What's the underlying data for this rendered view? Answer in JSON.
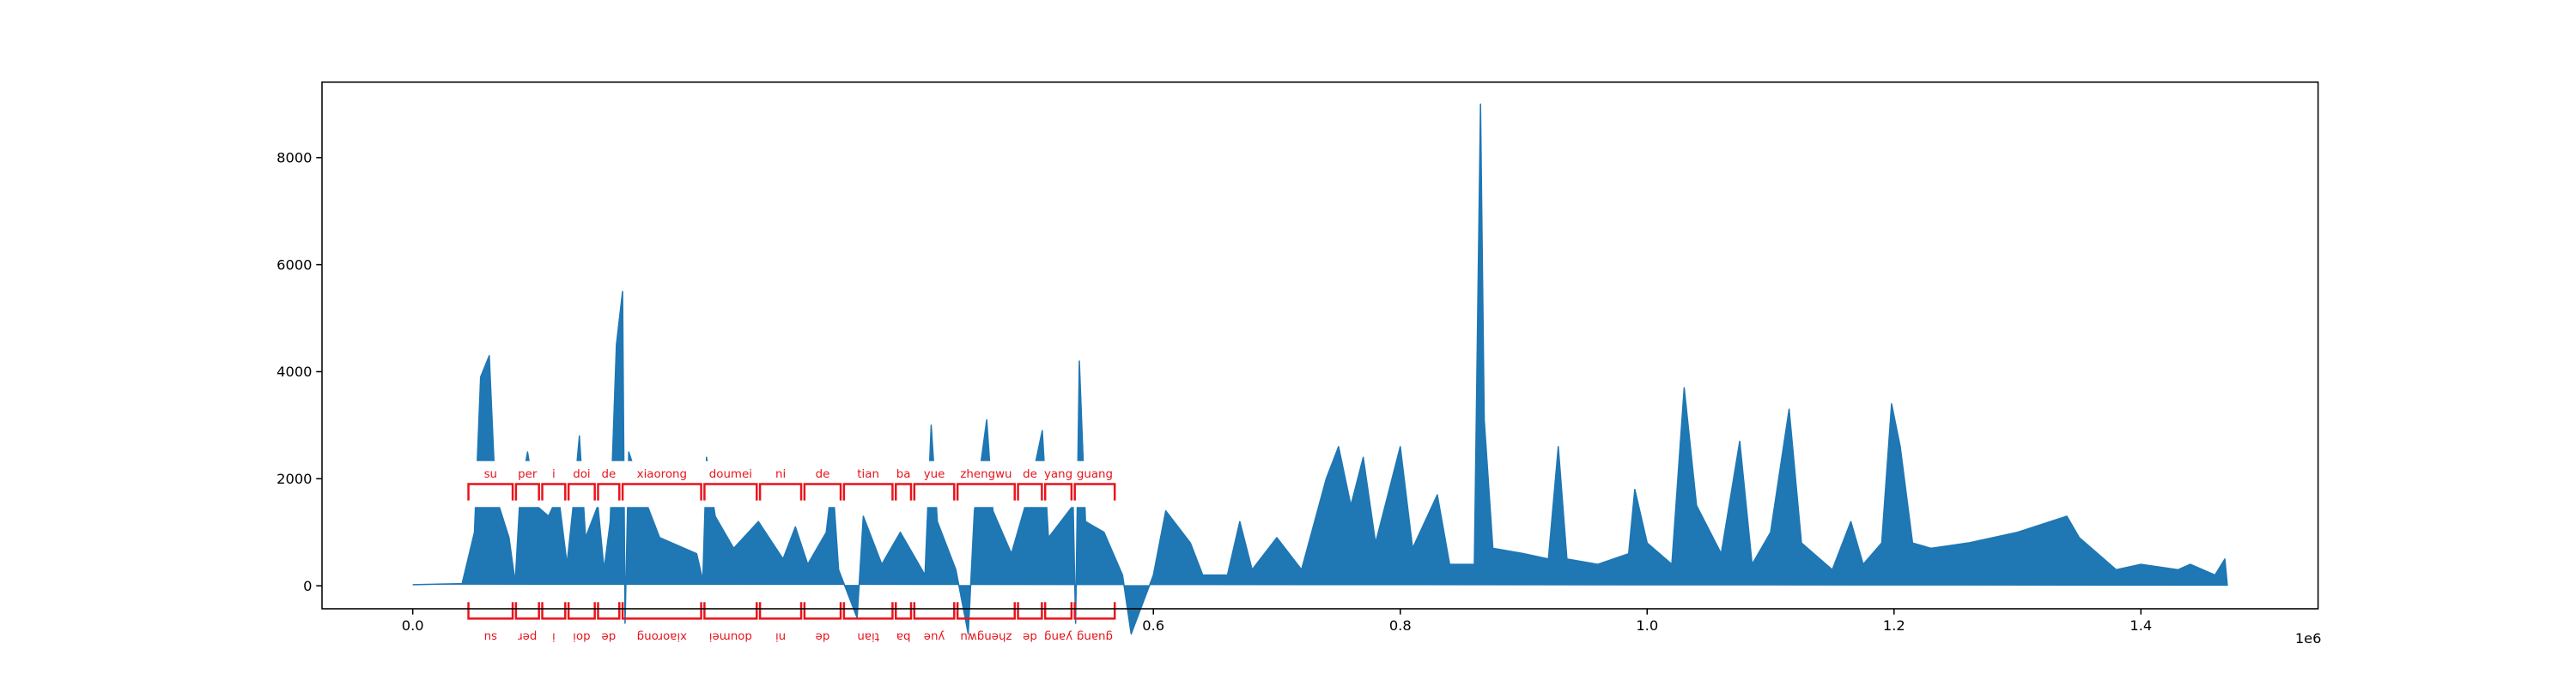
{
  "chart_data": {
    "type": "area",
    "color": "#1f77b4",
    "annotation_color": "#e8141c",
    "x": [
      0,
      40000,
      50000,
      55000,
      62000,
      67000,
      78000,
      83000,
      87000,
      93000,
      100000,
      110000,
      118000,
      125000,
      130000,
      135000,
      140000,
      150000,
      155000,
      160000,
      165000,
      170000,
      172000,
      175000,
      185000,
      200000,
      230000,
      235000,
      238000,
      245000,
      260000,
      280000,
      300000,
      310000,
      320000,
      335000,
      340000,
      345000,
      360000,
      365000,
      380000,
      395000,
      415000,
      420000,
      425000,
      440000,
      450000,
      455000,
      465000,
      470000,
      485000,
      500000,
      510000,
      515000,
      535000,
      537000,
      540000,
      545000,
      560000,
      575000,
      582000,
      600000,
      610000,
      630000,
      640000,
      660000,
      670000,
      680000,
      700000,
      720000,
      740000,
      750000,
      760000,
      770000,
      780000,
      800000,
      810000,
      830000,
      840000,
      860000,
      865000,
      868000,
      875000,
      900000,
      920000,
      928000,
      935000,
      960000,
      985000,
      990000,
      1000000,
      1020000,
      1030000,
      1040000,
      1060000,
      1075000,
      1085000,
      1100000,
      1115000,
      1125000,
      1150000,
      1165000,
      1175000,
      1190000,
      1198000,
      1205000,
      1215000,
      1230000,
      1260000,
      1300000,
      1340000,
      1350000,
      1380000,
      1400000,
      1430000,
      1440000,
      1460000,
      1468000,
      1470000
    ],
    "values": [
      20,
      40,
      1000,
      3900,
      4300,
      1700,
      900,
      60,
      1700,
      2500,
      1500,
      1300,
      1700,
      400,
      1500,
      2800,
      900,
      1500,
      300,
      1200,
      4500,
      5500,
      -700,
      2500,
      1800,
      900,
      600,
      100,
      2400,
      1300,
      700,
      1200,
      500,
      1100,
      400,
      1000,
      2000,
      300,
      -600,
      1300,
      400,
      1000,
      200,
      3000,
      1200,
      300,
      -900,
      1400,
      3100,
      1400,
      600,
      1800,
      2900,
      900,
      1500,
      -700,
      4200,
      1200,
      1000,
      200,
      -900,
      200,
      1400,
      800,
      200,
      200,
      1200,
      300,
      900,
      300,
      2000,
      2600,
      1500,
      2400,
      800,
      2600,
      700,
      1700,
      400,
      400,
      9000,
      3100,
      700,
      600,
      500,
      2600,
      500,
      400,
      600,
      1800,
      800,
      400,
      3700,
      1500,
      600,
      2700,
      400,
      1000,
      3300,
      800,
      300,
      1200,
      400,
      800,
      3400,
      2600,
      800,
      700,
      800,
      1000,
      1300,
      900,
      300,
      400,
      300,
      400,
      200,
      500,
      0
    ],
    "xlim": [
      -73500,
      1543500
    ],
    "ylim": [
      -430,
      9410
    ],
    "xticks": [
      {
        "value": 0,
        "label": "0.0"
      },
      {
        "value": 600000,
        "label": "0.6"
      },
      {
        "value": 800000,
        "label": "0.8"
      },
      {
        "value": 1000000,
        "label": "1.0"
      },
      {
        "value": 1200000,
        "label": "1.2"
      },
      {
        "value": 1400000,
        "label": "1.4"
      }
    ],
    "x_offset_label": "1e6",
    "yticks": [
      0,
      2000,
      4000,
      6000,
      8000
    ],
    "annotations": [
      {
        "label": "su",
        "start": 43800,
        "end": 82300
      },
      {
        "label": "per",
        "start": 82300,
        "end": 103600
      },
      {
        "label": "i",
        "start": 103600,
        "end": 124900
      },
      {
        "label": "doi",
        "start": 124900,
        "end": 148800
      },
      {
        "label": "de",
        "start": 148800,
        "end": 168700
      },
      {
        "label": "xiaorong",
        "start": 168700,
        "end": 235000
      },
      {
        "label": "doumei",
        "start": 235000,
        "end": 280000
      },
      {
        "label": "ni",
        "start": 280000,
        "end": 316000
      },
      {
        "label": "de",
        "start": 316000,
        "end": 348000
      },
      {
        "label": "tian",
        "start": 348000,
        "end": 390000
      },
      {
        "label": "ba",
        "start": 390000,
        "end": 405000
      },
      {
        "label": "yue",
        "start": 405000,
        "end": 440000
      },
      {
        "label": "zhengwu",
        "start": 440000,
        "end": 489000
      },
      {
        "label": "de",
        "start": 489000,
        "end": 511000
      },
      {
        "label": "yang",
        "start": 511000,
        "end": 535000
      },
      {
        "label": "guang",
        "start": 535000,
        "end": 570000
      }
    ]
  }
}
